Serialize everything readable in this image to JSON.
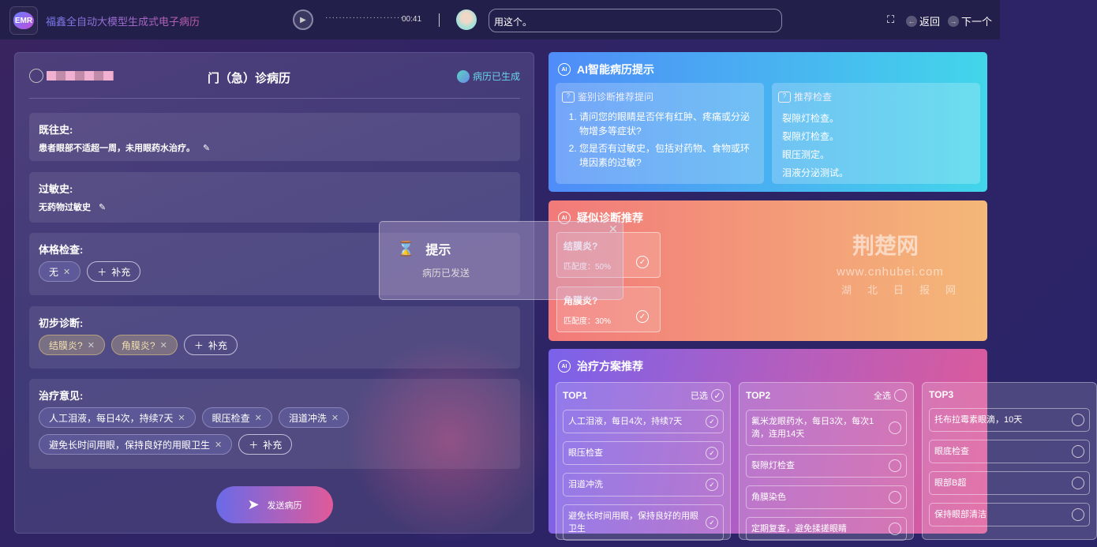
{
  "topbar": {
    "logo": "EMR",
    "title": "福鑫全自动大模型生成式电子病历",
    "dots": "·······················",
    "time": "00:41",
    "chat": "用这个。",
    "back": "返回",
    "next": "下一个"
  },
  "record": {
    "title": "门（急）诊病历",
    "status": "病历已生成",
    "history": {
      "label": "既往史:",
      "text": "患者眼部不适超一周，未用眼药水治疗。"
    },
    "allergy": {
      "label": "过敏史:",
      "text": "无药物过敏史"
    },
    "exam": {
      "label": "体格检查:",
      "tags": [
        "无"
      ],
      "add": "补充"
    },
    "diagnosis": {
      "label": "初步诊断:",
      "tags": [
        "结膜炎?",
        "角膜炎?"
      ],
      "add": "补充"
    },
    "treatment": {
      "label": "治疗意见:",
      "tags": [
        "人工泪液，每日4次，持续7天",
        "眼压检查",
        "泪道冲洗",
        "避免长时间用眼，保持良好的用眼卫生"
      ],
      "add": "补充"
    },
    "send": "发送病历"
  },
  "ai_tips": {
    "title": "AI智能病历提示",
    "questions": {
      "title": "鉴别诊断推荐提问",
      "items": [
        "请问您的眼睛是否伴有红肿、疼痛或分泌物增多等症状?",
        "您是否有过敏史，包括对药物、食物或环境因素的过敏?"
      ]
    },
    "exams": {
      "title": "推荐检查",
      "items": [
        "裂隙灯检查。",
        "裂隙灯检查。",
        "眼压测定。",
        "泪液分泌测试。"
      ]
    }
  },
  "suspect": {
    "title": "疑似诊断推荐",
    "items": [
      {
        "name": "结膜炎?",
        "match": "匹配度：50%"
      },
      {
        "name": "角膜炎?",
        "match": "匹配度：30%"
      }
    ]
  },
  "plans": {
    "title": "治疗方案推荐",
    "cols": [
      {
        "name": "TOP1",
        "action": "已选",
        "selected": true,
        "items": [
          "人工泪液，每日4次，持续7天",
          "眼压检查",
          "泪道冲洗",
          "避免长时间用眼，保持良好的用眼卫生"
        ]
      },
      {
        "name": "TOP2",
        "action": "全选",
        "selected": false,
        "items": [
          "氟米龙眼药水，每日3次，每次1滴，连用14天",
          "裂隙灯检查",
          "角膜染色",
          "定期复查，避免揉搓眼睛"
        ]
      },
      {
        "name": "TOP3",
        "action": "",
        "selected": false,
        "items": [
          "托布拉霉素眼滴，10天",
          "眼底检查",
          "眼部B超",
          "保持眼部清洁"
        ]
      }
    ]
  },
  "toast": {
    "title": "提示",
    "message": "病历已发送"
  },
  "watermark": {
    "logo": "荆楚网",
    "url": "www.cnhubei.com",
    "sub": "湖北日报网"
  }
}
